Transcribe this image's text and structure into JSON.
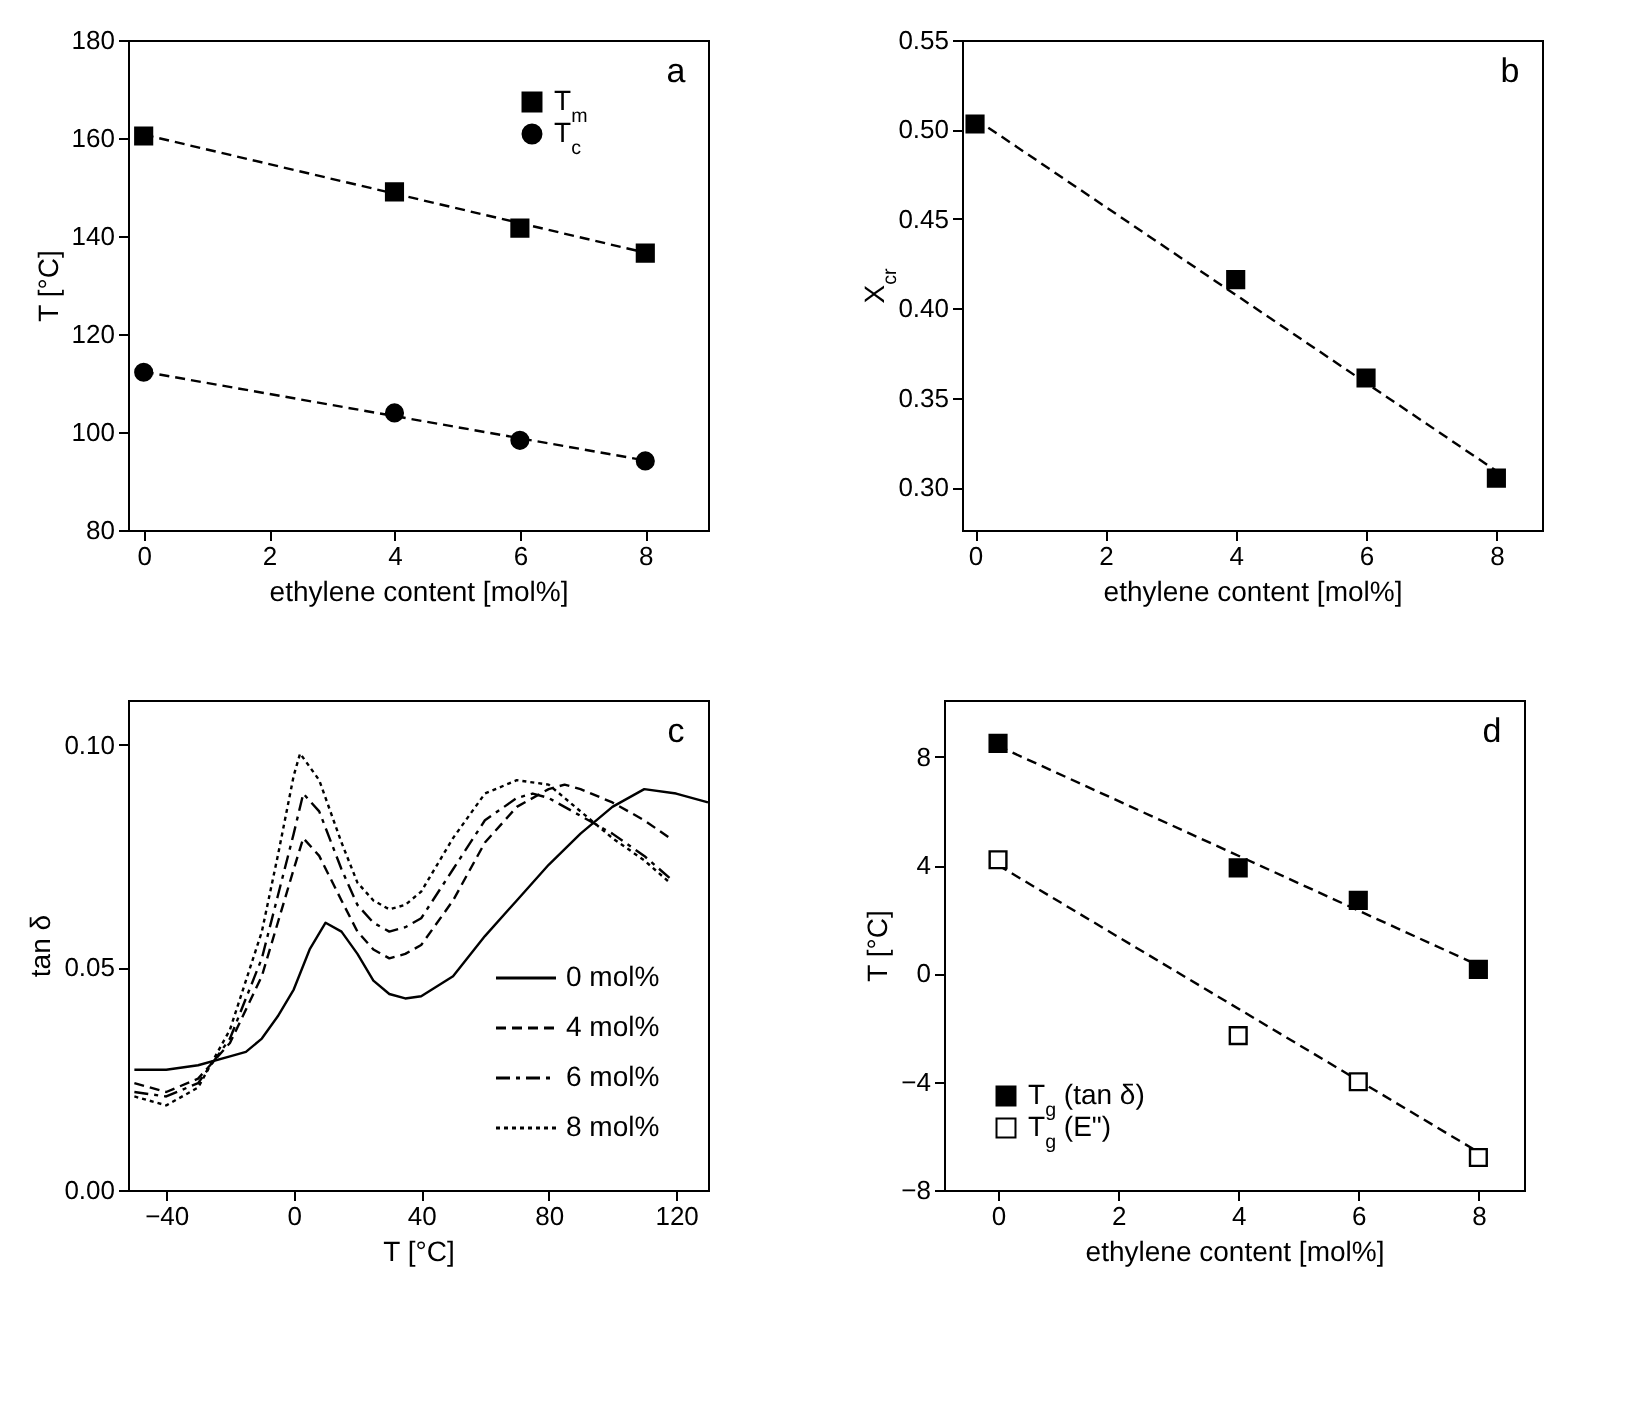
{
  "chart_data": [
    {
      "type": "scatter",
      "xlabel": "ethylene content [mol%]",
      "ylabel": "T [°C]",
      "xlim": [
        -0.25,
        9
      ],
      "xticks": [
        0,
        2,
        4,
        6,
        8
      ],
      "ylim": [
        80,
        180
      ],
      "yticks": [
        80,
        100,
        120,
        140,
        160,
        180
      ],
      "legend": "top right",
      "grid": false,
      "annotations": [
        "a"
      ],
      "series": [
        {
          "name": "T$_{m}$",
          "type": "scatter",
          "marker": "square",
          "color": "#000000",
          "x": [
            0,
            4,
            6,
            8
          ],
          "values": [
            160.4,
            149,
            141.6,
            136.5
          ]
        },
        {
          "name": "T$_{c}$",
          "type": "scatter",
          "marker": "circle",
          "color": "#000000",
          "x": [
            0,
            4,
            6,
            8
          ],
          "values": [
            112.2,
            103.9,
            98.3,
            94.1
          ]
        },
        {
          "type": "line",
          "line_style": "dashed",
          "color": "#000000",
          "x": [
            0,
            8
          ],
          "values": [
            160.7,
            136.6
          ]
        },
        {
          "type": "line",
          "line_style": "dashed",
          "color": "#000000",
          "x": [
            0,
            8
          ],
          "values": [
            112.3,
            94.2
          ]
        }
      ]
    },
    {
      "type": "scatter",
      "xlabel": "ethylene content [mol%]",
      "ylabel": "X$_{cr}$",
      "xlim": [
        -0.2,
        8.7
      ],
      "xticks": [
        0,
        2,
        4,
        6,
        8
      ],
      "ylim": [
        0.276,
        0.55
      ],
      "yticks": [
        {
          "value": 0.3,
          "label": "0.30"
        },
        0.35,
        {
          "value": 0.4,
          "label": "0.40"
        },
        0.45,
        {
          "value": 0.5,
          "label": "0.50"
        },
        0.55
      ],
      "grid": false,
      "annotations": [
        "b"
      ],
      "series": [
        {
          "type": "scatter",
          "marker": "square",
          "color": "#000000",
          "x": [
            0,
            4,
            6,
            8
          ],
          "values": [
            0.503,
            0.416,
            0.361,
            0.305
          ]
        },
        {
          "type": "line",
          "line_style": "dashed",
          "color": "#000000",
          "x": [
            0,
            8
          ],
          "values": [
            0.506,
            0.309
          ]
        }
      ]
    },
    {
      "type": "line",
      "xlabel": "T [°C]",
      "ylabel": "tan δ",
      "xlim": [
        -52,
        130
      ],
      "xticks": [
        -40,
        0,
        40,
        80,
        120
      ],
      "ylim": [
        0,
        0.11
      ],
      "yticks": [
        {
          "value": 0,
          "label": "0.00"
        },
        0.05,
        {
          "value": 0.1,
          "label": "0.10"
        }
      ],
      "legend": "bottom right",
      "grid": false,
      "annotations": [
        "c"
      ],
      "series": [
        {
          "name": "0 mol%",
          "line_style": "solid",
          "color": "#000000",
          "x": [
            -50,
            -40,
            -30,
            -20,
            -15,
            -10,
            -5,
            0,
            5,
            10,
            15,
            20,
            25,
            30,
            35,
            40,
            50,
            60,
            70,
            80,
            90,
            100,
            110,
            120,
            130
          ],
          "values": [
            0.027,
            0.027,
            0.028,
            0.03,
            0.031,
            0.034,
            0.039,
            0.045,
            0.054,
            0.06,
            0.058,
            0.053,
            0.047,
            0.044,
            0.043,
            0.0435,
            0.048,
            0.057,
            0.065,
            0.073,
            0.08,
            0.086,
            0.09,
            0.089,
            0.087
          ]
        },
        {
          "name": "4 mol%",
          "line_style": "dashed",
          "color": "#000000",
          "x": [
            -50,
            -40,
            -30,
            -20,
            -10,
            -5,
            0,
            3,
            8,
            15,
            20,
            25,
            30,
            35,
            40,
            50,
            60,
            70,
            80,
            85,
            90,
            100,
            110,
            118
          ],
          "values": [
            0.024,
            0.022,
            0.025,
            0.033,
            0.048,
            0.06,
            0.072,
            0.079,
            0.075,
            0.065,
            0.058,
            0.054,
            0.052,
            0.053,
            0.055,
            0.065,
            0.078,
            0.086,
            0.09,
            0.091,
            0.09,
            0.087,
            0.083,
            0.079
          ]
        },
        {
          "name": "6 mol%",
          "line_style": "dashdot",
          "color": "#000000",
          "x": [
            -50,
            -40,
            -30,
            -20,
            -10,
            -5,
            0,
            3,
            8,
            15,
            20,
            25,
            30,
            35,
            40,
            50,
            60,
            70,
            75,
            80,
            90,
            100,
            110,
            118
          ],
          "values": [
            0.022,
            0.021,
            0.024,
            0.034,
            0.052,
            0.066,
            0.08,
            0.089,
            0.085,
            0.072,
            0.064,
            0.06,
            0.058,
            0.059,
            0.061,
            0.072,
            0.083,
            0.088,
            0.089,
            0.088,
            0.084,
            0.08,
            0.075,
            0.07
          ]
        },
        {
          "name": "8 mol%",
          "line_style": "dotted",
          "color": "#000000",
          "x": [
            -50,
            -40,
            -30,
            -20,
            -10,
            -5,
            0,
            2,
            8,
            15,
            20,
            25,
            30,
            35,
            40,
            50,
            60,
            70,
            80,
            90,
            100,
            110,
            118
          ],
          "values": [
            0.021,
            0.019,
            0.023,
            0.036,
            0.058,
            0.075,
            0.093,
            0.098,
            0.092,
            0.078,
            0.069,
            0.065,
            0.063,
            0.064,
            0.067,
            0.079,
            0.089,
            0.092,
            0.091,
            0.085,
            0.079,
            0.074,
            0.069
          ]
        }
      ]
    },
    {
      "type": "scatter",
      "xlabel": "ethylene content [mol%]",
      "ylabel": "T [°C]",
      "xlim": [
        -0.9,
        8.76
      ],
      "xticks": [
        0,
        2,
        4,
        6,
        8
      ],
      "ylim": [
        -8,
        10.1
      ],
      "yticks": [
        -8,
        -4,
        0,
        4,
        8
      ],
      "legend": "bottom left",
      "grid": false,
      "annotations": [
        "d"
      ],
      "series": [
        {
          "name": "T$_{g}$ (tan δ)",
          "type": "scatter",
          "marker": "square",
          "color": "#000000",
          "x": [
            0,
            4,
            6,
            8
          ],
          "values": [
            8.5,
            3.9,
            2.7,
            0.15
          ]
        },
        {
          "name": "T$_{g}$ (E\")",
          "type": "scatter",
          "marker": "square-open",
          "color": "#000000",
          "x": [
            0,
            4,
            6,
            8
          ],
          "values": [
            4.2,
            -2.3,
            -4.0,
            -6.8
          ]
        },
        {
          "type": "line",
          "line_style": "dashed",
          "color": "#000000",
          "x": [
            0,
            8
          ],
          "values": [
            8.4,
            0.3
          ]
        },
        {
          "type": "line",
          "line_style": "dashed",
          "color": "#000000",
          "x": [
            0,
            8
          ],
          "values": [
            4.0,
            -6.6
          ]
        }
      ]
    }
  ]
}
